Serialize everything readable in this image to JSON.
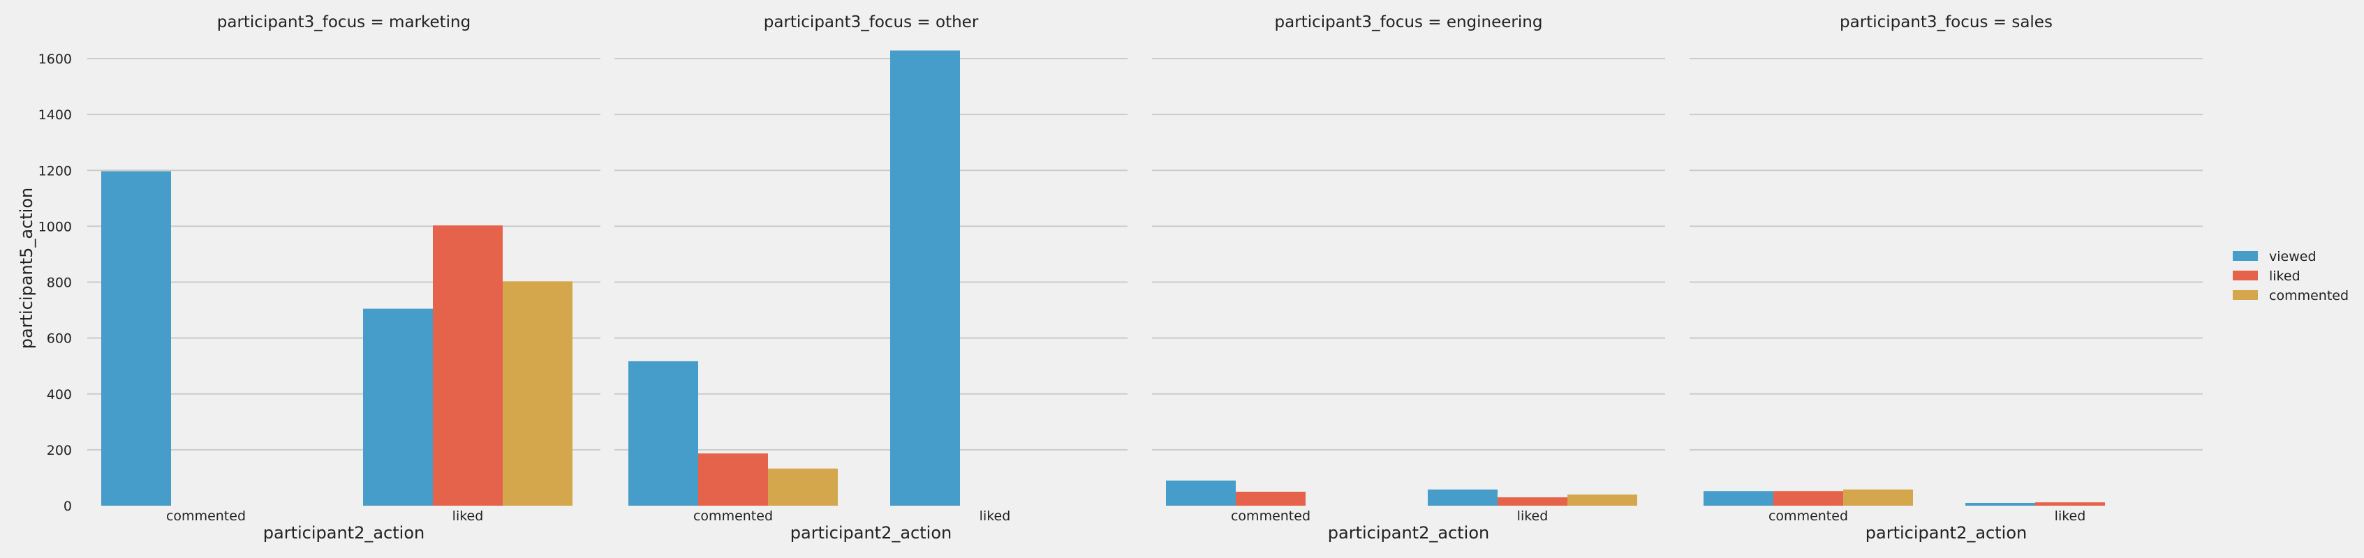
{
  "chart_data": {
    "type": "bar",
    "facet_variable": "participant3_focus",
    "facet_label_template": "participant3_focus = {value}",
    "xlabel": "participant2_action",
    "ylabel": "participant5_action",
    "ylim": [
      0,
      1700
    ],
    "yticks": [
      0,
      200,
      400,
      600,
      800,
      1000,
      1200,
      1400,
      1600
    ],
    "categories": [
      "commented",
      "liked"
    ],
    "legend": {
      "placement": "right",
      "entries": [
        "viewed",
        "liked",
        "commented"
      ]
    },
    "series_colors": {
      "viewed": "#469dc9",
      "liked": "#e5634a",
      "commented": "#d5a74c"
    },
    "grid": "horizontal",
    "facets": [
      {
        "title": "participant3_focus = marketing",
        "series": [
          {
            "name": "viewed",
            "values": [
              1197,
              705
            ]
          },
          {
            "name": "liked",
            "values": [
              null,
              1003
            ]
          },
          {
            "name": "commented",
            "values": [
              null,
              803
            ]
          }
        ]
      },
      {
        "title": "participant3_focus = other",
        "series": [
          {
            "name": "viewed",
            "values": [
              517,
              1629
            ]
          },
          {
            "name": "liked",
            "values": [
              187,
              null
            ]
          },
          {
            "name": "commented",
            "values": [
              133,
              null
            ]
          }
        ]
      },
      {
        "title": "participant3_focus = engineering",
        "series": [
          {
            "name": "viewed",
            "values": [
              90,
              58
            ]
          },
          {
            "name": "liked",
            "values": [
              50,
              30
            ]
          },
          {
            "name": "commented",
            "values": [
              null,
              40
            ]
          }
        ]
      },
      {
        "title": "participant3_focus = sales",
        "series": [
          {
            "name": "viewed",
            "values": [
              52,
              10
            ]
          },
          {
            "name": "liked",
            "values": [
              52,
              12
            ]
          },
          {
            "name": "commented",
            "values": [
              58,
              null
            ]
          }
        ]
      }
    ]
  }
}
